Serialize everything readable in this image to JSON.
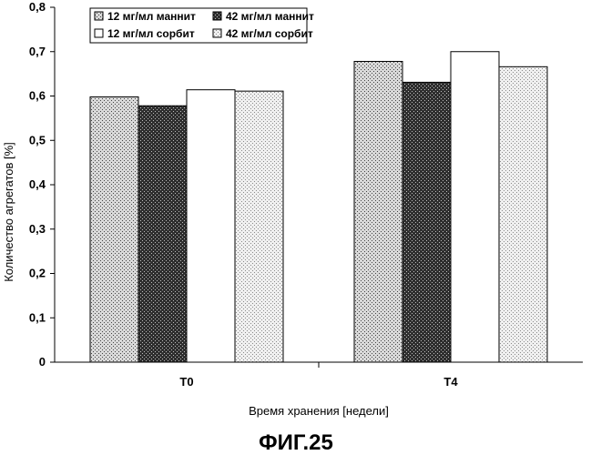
{
  "chart_data": {
    "type": "bar",
    "categories": [
      "T0",
      "T4"
    ],
    "series": [
      {
        "name": "12 мг/мл маннит",
        "values": [
          0.598,
          0.678
        ],
        "pattern": "dots-dense"
      },
      {
        "name": "42 мг/мл маннит",
        "values": [
          0.578,
          0.631
        ],
        "pattern": "crosshatch"
      },
      {
        "name": "12 мг/мл сорбит",
        "values": [
          0.614,
          0.7
        ],
        "pattern": "white"
      },
      {
        "name": "42 мг/мл сорбит",
        "values": [
          0.611,
          0.666
        ],
        "pattern": "dots-light"
      }
    ],
    "xlabel": "Время хранения [недели]",
    "ylabel": "Количество агрегатов [%]",
    "ylim": [
      0,
      0.8
    ],
    "yticks": [
      "0",
      "0,1",
      "0,2",
      "0,3",
      "0,4",
      "0,5",
      "0,6",
      "0,7",
      "0,8"
    ],
    "grid": false,
    "legend_position": "top-left"
  },
  "caption": "ФИГ.25"
}
